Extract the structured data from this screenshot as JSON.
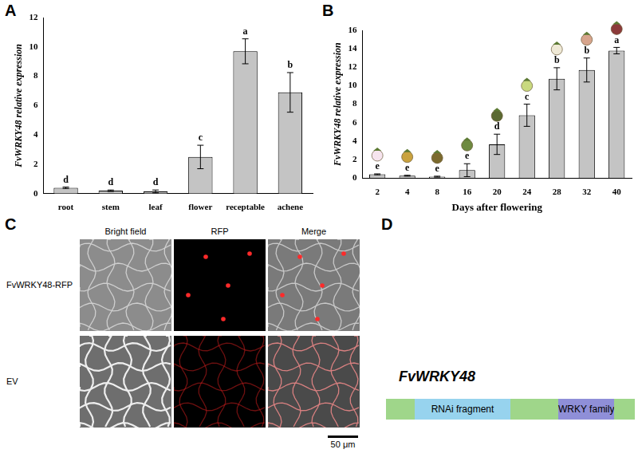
{
  "chart_data": [
    {
      "panel": "A",
      "type": "bar",
      "categories": [
        "root",
        "stem",
        "leaf",
        "flower",
        "receptable",
        "achene"
      ],
      "values": [
        0.4,
        0.2,
        0.15,
        2.5,
        9.7,
        6.9
      ],
      "errors": [
        0.05,
        0.05,
        0.1,
        0.8,
        0.85,
        1.35
      ],
      "letters": [
        "d",
        "d",
        "d",
        "c",
        "a",
        "b"
      ],
      "color": "#c4c4c4",
      "y_label": "FvWRKY48 relative expression",
      "ylim": [
        0,
        12
      ],
      "yticks": [
        0,
        2,
        4,
        6,
        8,
        10,
        12
      ],
      "grid": false
    },
    {
      "panel": "B",
      "type": "bar",
      "categories": [
        "2",
        "4",
        "8",
        "16",
        "20",
        "24",
        "28",
        "32",
        "40"
      ],
      "values": [
        0.4,
        0.25,
        0.15,
        0.85,
        3.65,
        6.8,
        10.75,
        11.7,
        13.8
      ],
      "errors": [
        0.05,
        0.05,
        0.05,
        0.7,
        1.1,
        1.2,
        1.2,
        1.3,
        0.35
      ],
      "letters": [
        "e",
        "e",
        "e",
        "e",
        "d",
        "c",
        "b",
        "b",
        "a"
      ],
      "color": "#c4c4c4",
      "x_label": "Days after flowering",
      "y_label": "FvWRKY48 relative expression",
      "ylim": [
        0,
        16
      ],
      "yticks": [
        0,
        2,
        4,
        6,
        8,
        10,
        12,
        14,
        16
      ],
      "grid": false
    }
  ],
  "panel_c": {
    "panel": "C",
    "columns": [
      "Bright field",
      "RFP",
      "Merge"
    ],
    "rows": [
      "FvWRKY48-RFP",
      "EV"
    ],
    "scale_bar": "50 μm"
  },
  "panel_d": {
    "panel": "D",
    "title": "FvWRKY48",
    "segments": [
      "RNAi fragment",
      "WRKY family"
    ]
  }
}
